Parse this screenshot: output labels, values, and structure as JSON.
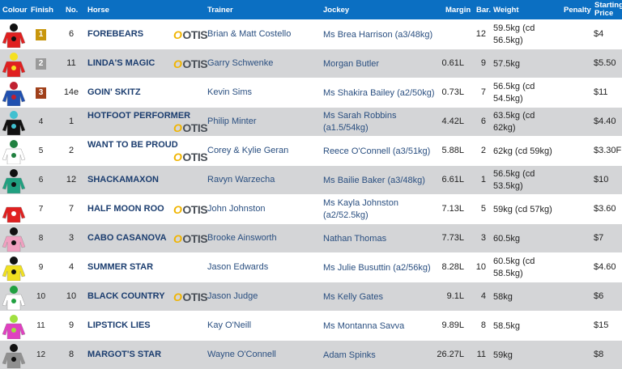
{
  "header": {
    "colour": "Colour",
    "finish": "Finish",
    "no": "No.",
    "horse": "Horse",
    "trainer": "Trainer",
    "jockey": "Jockey",
    "margin": "Margin",
    "bar": "Bar.",
    "weight": "Weight",
    "penalty": "Penalty",
    "sp": "Starting Price"
  },
  "otis_logo": "OTIS",
  "finish_colors": {
    "1": "#c8960c",
    "2": "#9a9a9a",
    "3": "#a0401a"
  },
  "rows": [
    {
      "finish": "1",
      "no": "6",
      "horse": "FOREBEARS",
      "otis": true,
      "trainer": "Brian & Matt Costello",
      "jockey": "Ms Brea Harrison (a3/48kg)",
      "margin": "",
      "bar": "12",
      "weight": "59.5kg (cd 56.5kg)",
      "sp": "$4",
      "silk": [
        "#e02020",
        "#111111"
      ]
    },
    {
      "finish": "2",
      "no": "11",
      "horse": "LINDA'S MAGIC",
      "otis": true,
      "trainer": "Garry Schwenke",
      "jockey": "Morgan Butler",
      "margin": "0.61L",
      "bar": "9",
      "weight": "57.5kg",
      "sp": "$5.50",
      "silk": [
        "#e02020",
        "#f5e020"
      ]
    },
    {
      "finish": "3",
      "no": "14e",
      "horse": "GOIN' SKITZ",
      "otis": false,
      "trainer": "Kevin Sims",
      "jockey": "Ms Shakira Bailey (a2/50kg)",
      "margin": "0.73L",
      "bar": "7",
      "weight": "56.5kg (cd 54.5kg)",
      "sp": "$11",
      "silk": [
        "#2050b0",
        "#c02030"
      ]
    },
    {
      "finish": "4",
      "no": "1",
      "horse": "HOTFOOT PERFORMER",
      "otis": true,
      "trainer": "Philip Minter",
      "jockey": "Ms Sarah Robbins (a1.5/54kg)",
      "margin": "4.42L",
      "bar": "6",
      "weight": "63.5kg (cd 62kg)",
      "sp": "$4.40",
      "silk": [
        "#111111",
        "#40c0d0"
      ]
    },
    {
      "finish": "5",
      "no": "2",
      "horse": "WANT TO BE PROUD",
      "otis": true,
      "trainer": "Corey & Kylie Geran",
      "jockey": "Reece O'Connell (a3/51kg)",
      "margin": "5.88L",
      "bar": "2",
      "weight": "62kg (cd 59kg)",
      "sp": "$3.30F",
      "silk": [
        "#ffffff",
        "#208040"
      ]
    },
    {
      "finish": "6",
      "no": "12",
      "horse": "SHACKAMAXON",
      "otis": false,
      "trainer": "Ravyn Warzecha",
      "jockey": "Ms Bailie Baker (a3/48kg)",
      "margin": "6.61L",
      "bar": "1",
      "weight": "56.5kg (cd 53.5kg)",
      "sp": "$10",
      "silk": [
        "#20a080",
        "#111111"
      ]
    },
    {
      "finish": "7",
      "no": "7",
      "horse": "HALF MOON ROO",
      "otis": true,
      "trainer": "John Johnston",
      "jockey": "Ms Kayla Johnston (a2/52.5kg)",
      "margin": "7.13L",
      "bar": "5",
      "weight": "59kg (cd 57kg)",
      "sp": "$3.60",
      "silk": [
        "#e02020",
        "#ffffff"
      ]
    },
    {
      "finish": "8",
      "no": "3",
      "horse": "CABO CASANOVA",
      "otis": true,
      "trainer": "Brooke Ainsworth",
      "jockey": "Nathan Thomas",
      "margin": "7.73L",
      "bar": "3",
      "weight": "60.5kg",
      "sp": "$7",
      "silk": [
        "#f0a0c0",
        "#111111"
      ]
    },
    {
      "finish": "9",
      "no": "4",
      "horse": "SUMMER STAR",
      "otis": false,
      "trainer": "Jason Edwards",
      "jockey": "Ms Julie Busuttin (a2/56kg)",
      "margin": "8.28L",
      "bar": "10",
      "weight": "60.5kg (cd 58.5kg)",
      "sp": "$4.60",
      "silk": [
        "#f0e020",
        "#111111"
      ]
    },
    {
      "finish": "10",
      "no": "10",
      "horse": "BLACK COUNTRY",
      "otis": true,
      "trainer": "Jason Judge",
      "jockey": "Ms Kelly Gates",
      "margin": "9.1L",
      "bar": "4",
      "weight": "58kg",
      "sp": "$6",
      "silk": [
        "#ffffff",
        "#20a040"
      ]
    },
    {
      "finish": "11",
      "no": "9",
      "horse": "LIPSTICK LIES",
      "otis": false,
      "trainer": "Kay O'Neill",
      "jockey": "Ms Montanna Savva",
      "margin": "9.89L",
      "bar": "8",
      "weight": "58.5kg",
      "sp": "$15",
      "silk": [
        "#e040c0",
        "#a0e040"
      ]
    },
    {
      "finish": "12",
      "no": "8",
      "horse": "MARGOT'S STAR",
      "otis": false,
      "trainer": "Wayne O'Connell",
      "jockey": "Adam Spinks",
      "margin": "26.27L",
      "bar": "11",
      "weight": "59kg",
      "sp": "$8",
      "silk": [
        "#909090",
        "#111111"
      ]
    }
  ]
}
